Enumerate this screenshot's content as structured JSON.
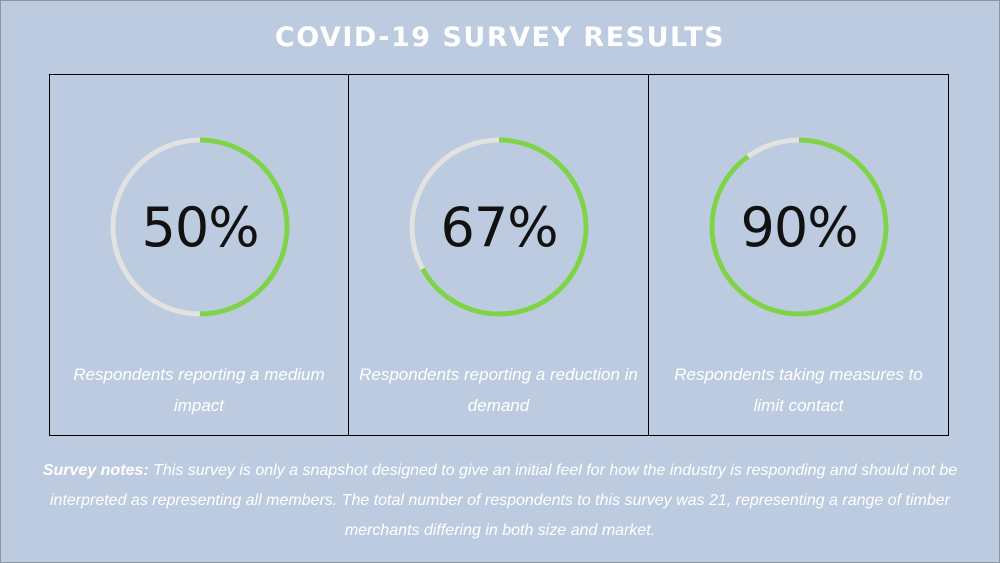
{
  "title": "COVID-19 SURVEY RESULTS",
  "colors": {
    "background": "#bccbdf",
    "progress": "#7ed348",
    "track": "#e2e2e2",
    "text": "#ffffff"
  },
  "stats": [
    {
      "value_label": "50%",
      "value": 50,
      "caption": "Respondents reporting a medium impact"
    },
    {
      "value_label": "67%",
      "value": 67,
      "caption": "Respondents reporting a reduction in demand"
    },
    {
      "value_label": "90%",
      "value": 90,
      "caption": "Respondents taking measures to limit contact"
    }
  ],
  "notes": {
    "label": "Survey notes:",
    "text": " This survey is only a snapshot designed to give an initial feel for how the industry is responding and should not be interpreted as representing all members. The total number of respondents to this survey was 21, representing a range of timber merchants differing in both size and market."
  }
}
